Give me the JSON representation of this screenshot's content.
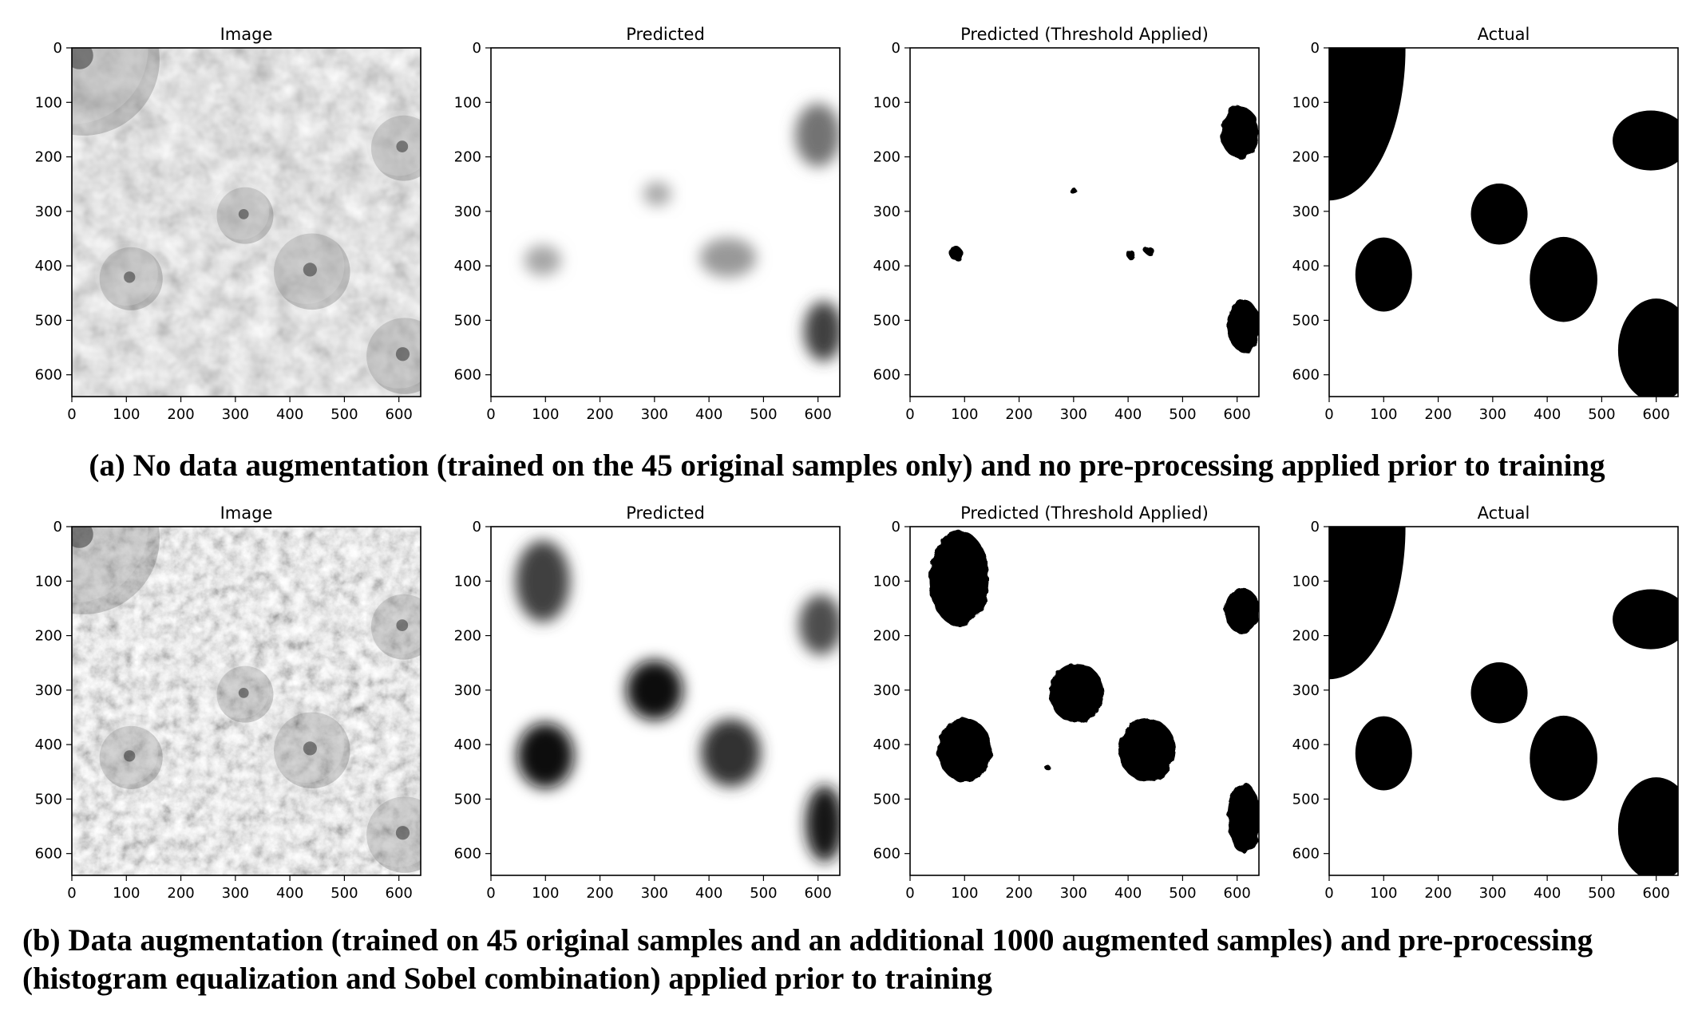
{
  "figure": {
    "panel_titles": [
      "Image",
      "Predicted",
      "Predicted (Threshold Applied)",
      "Actual"
    ],
    "tick_values": [
      0,
      100,
      200,
      300,
      400,
      500,
      600
    ],
    "axis_range": [
      0,
      640
    ],
    "y_inverted": true,
    "colors": {
      "mask": "#000000",
      "background": "#ffffff",
      "terrain_base": "#888888"
    }
  },
  "chart_data": [
    {
      "type": "heatmap",
      "row": "a",
      "title": "Image",
      "xlim": [
        0,
        640
      ],
      "ylim": [
        640,
        0
      ],
      "content": "grayscale terrain image",
      "craters": [
        {
          "x": 0,
          "y": 0,
          "r": 140
        },
        {
          "x": 310,
          "y": 300,
          "r": 52
        },
        {
          "x": 100,
          "y": 415,
          "r": 58
        },
        {
          "x": 430,
          "y": 400,
          "r": 70
        },
        {
          "x": 600,
          "y": 175,
          "r": 60
        },
        {
          "x": 600,
          "y": 555,
          "r": 70
        }
      ]
    },
    {
      "type": "heatmap",
      "row": "a",
      "title": "Predicted",
      "xlim": [
        0,
        640
      ],
      "ylim": [
        640,
        0
      ],
      "blobs": [
        {
          "x": 600,
          "y": 160,
          "rx": 42,
          "ry": 58,
          "intensity": 0.55
        },
        {
          "x": 305,
          "y": 268,
          "rx": 26,
          "ry": 22,
          "intensity": 0.35
        },
        {
          "x": 95,
          "y": 390,
          "rx": 34,
          "ry": 28,
          "intensity": 0.35
        },
        {
          "x": 435,
          "y": 385,
          "rx": 52,
          "ry": 36,
          "intensity": 0.4
        },
        {
          "x": 610,
          "y": 520,
          "rx": 36,
          "ry": 55,
          "intensity": 0.75
        }
      ]
    },
    {
      "type": "heatmap",
      "row": "a",
      "title": "Predicted (Threshold Applied)",
      "xlim": [
        0,
        640
      ],
      "ylim": [
        640,
        0
      ],
      "masks": [
        {
          "x": 605,
          "y": 155,
          "rx": 35,
          "ry": 48
        },
        {
          "x": 300,
          "y": 263,
          "rx": 6,
          "ry": 6
        },
        {
          "x": 85,
          "y": 378,
          "rx": 11,
          "ry": 14
        },
        {
          "x": 405,
          "y": 380,
          "rx": 7,
          "ry": 9
        },
        {
          "x": 438,
          "y": 372,
          "rx": 9,
          "ry": 7
        },
        {
          "x": 612,
          "y": 510,
          "rx": 30,
          "ry": 48
        }
      ]
    },
    {
      "type": "heatmap",
      "row": "a",
      "title": "Actual",
      "xlim": [
        0,
        640
      ],
      "ylim": [
        640,
        0
      ],
      "masks": [
        {
          "x": 0,
          "y": 0,
          "rx": 140,
          "ry": 280
        },
        {
          "x": 590,
          "y": 170,
          "rx": 70,
          "ry": 55
        },
        {
          "x": 312,
          "y": 305,
          "rx": 52,
          "ry": 56
        },
        {
          "x": 100,
          "y": 416,
          "rx": 52,
          "ry": 68
        },
        {
          "x": 430,
          "y": 425,
          "rx": 62,
          "ry": 78
        },
        {
          "x": 600,
          "y": 555,
          "rx": 70,
          "ry": 95
        }
      ]
    },
    {
      "type": "heatmap",
      "row": "b",
      "title": "Image",
      "xlim": [
        0,
        640
      ],
      "ylim": [
        640,
        0
      ],
      "content": "histogram equalized + Sobel terrain image",
      "craters": [
        {
          "x": 0,
          "y": 0,
          "r": 140
        },
        {
          "x": 310,
          "y": 300,
          "r": 52
        },
        {
          "x": 100,
          "y": 415,
          "r": 58
        },
        {
          "x": 430,
          "y": 400,
          "r": 70
        },
        {
          "x": 600,
          "y": 175,
          "r": 60
        },
        {
          "x": 600,
          "y": 555,
          "r": 70
        }
      ]
    },
    {
      "type": "heatmap",
      "row": "b",
      "title": "Predicted",
      "xlim": [
        0,
        640
      ],
      "ylim": [
        640,
        0
      ],
      "blobs": [
        {
          "x": 95,
          "y": 100,
          "rx": 50,
          "ry": 75,
          "intensity": 0.75
        },
        {
          "x": 605,
          "y": 180,
          "rx": 40,
          "ry": 55,
          "intensity": 0.7
        },
        {
          "x": 300,
          "y": 300,
          "rx": 52,
          "ry": 55,
          "intensity": 0.95
        },
        {
          "x": 100,
          "y": 420,
          "rx": 52,
          "ry": 60,
          "intensity": 0.95
        },
        {
          "x": 440,
          "y": 415,
          "rx": 55,
          "ry": 62,
          "intensity": 0.8
        },
        {
          "x": 612,
          "y": 545,
          "rx": 35,
          "ry": 70,
          "intensity": 0.9
        }
      ]
    },
    {
      "type": "heatmap",
      "row": "b",
      "title": "Predicted (Threshold Applied)",
      "xlim": [
        0,
        640
      ],
      "ylim": [
        640,
        0
      ],
      "masks": [
        {
          "x": 90,
          "y": 95,
          "rx": 55,
          "ry": 88
        },
        {
          "x": 610,
          "y": 155,
          "rx": 32,
          "ry": 42
        },
        {
          "x": 305,
          "y": 305,
          "rx": 50,
          "ry": 55
        },
        {
          "x": 100,
          "y": 410,
          "rx": 50,
          "ry": 58
        },
        {
          "x": 435,
          "y": 410,
          "rx": 52,
          "ry": 58
        },
        {
          "x": 613,
          "y": 535,
          "rx": 30,
          "ry": 65
        },
        {
          "x": 252,
          "y": 442,
          "rx": 5,
          "ry": 5
        }
      ]
    },
    {
      "type": "heatmap",
      "row": "b",
      "title": "Actual",
      "xlim": [
        0,
        640
      ],
      "ylim": [
        640,
        0
      ],
      "masks": [
        {
          "x": 0,
          "y": 0,
          "rx": 140,
          "ry": 280
        },
        {
          "x": 590,
          "y": 170,
          "rx": 70,
          "ry": 55
        },
        {
          "x": 312,
          "y": 305,
          "rx": 52,
          "ry": 56
        },
        {
          "x": 100,
          "y": 416,
          "rx": 52,
          "ry": 68
        },
        {
          "x": 430,
          "y": 425,
          "rx": 62,
          "ry": 78
        },
        {
          "x": 600,
          "y": 555,
          "rx": 70,
          "ry": 95
        }
      ]
    }
  ],
  "captions": {
    "a": "(a) No data augmentation (trained on the 45 original samples only) and no pre-processing applied prior to training",
    "b": "(b) Data augmentation (trained on 45 original samples and an additional 1000 augmented samples) and pre-processing (histogram equalization and Sobel combination) applied prior to training"
  }
}
